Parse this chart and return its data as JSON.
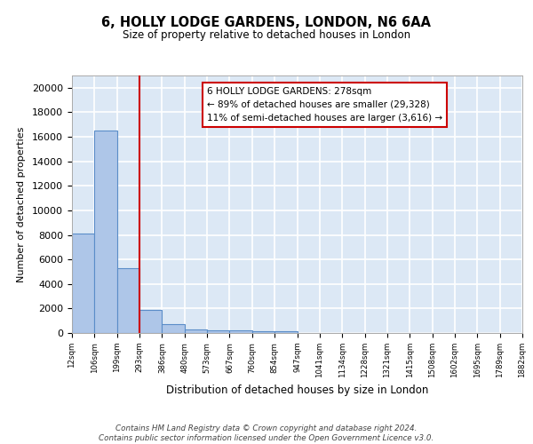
{
  "title1": "6, HOLLY LODGE GARDENS, LONDON, N6 6AA",
  "title2": "Size of property relative to detached houses in London",
  "xlabel": "Distribution of detached houses by size in London",
  "ylabel": "Number of detached properties",
  "bin_labels": [
    "12sqm",
    "106sqm",
    "199sqm",
    "293sqm",
    "386sqm",
    "480sqm",
    "573sqm",
    "667sqm",
    "760sqm",
    "854sqm",
    "947sqm",
    "1041sqm",
    "1134sqm",
    "1228sqm",
    "1321sqm",
    "1415sqm",
    "1508sqm",
    "1602sqm",
    "1695sqm",
    "1789sqm",
    "1882sqm"
  ],
  "bar_heights": [
    8100,
    16500,
    5300,
    1900,
    700,
    300,
    230,
    200,
    170,
    150,
    0,
    0,
    0,
    0,
    0,
    0,
    0,
    0,
    0,
    0
  ],
  "bar_color": "#aec6e8",
  "bar_edge_color": "#5b8dc8",
  "property_line_color": "#cc0000",
  "property_line_x": 2.5,
  "annotation_text": "6 HOLLY LODGE GARDENS: 278sqm\n← 89% of detached houses are smaller (29,328)\n11% of semi-detached houses are larger (3,616) →",
  "annotation_box_color": "#ffffff",
  "annotation_box_edge": "#cc0000",
  "ylim": [
    0,
    21000
  ],
  "yticks": [
    0,
    2000,
    4000,
    6000,
    8000,
    10000,
    12000,
    14000,
    16000,
    18000,
    20000
  ],
  "footer_text": "Contains HM Land Registry data © Crown copyright and database right 2024.\nContains public sector information licensed under the Open Government Licence v3.0.",
  "background_color": "#dce8f5",
  "grid_color": "#ffffff",
  "fig_bg": "#ffffff"
}
